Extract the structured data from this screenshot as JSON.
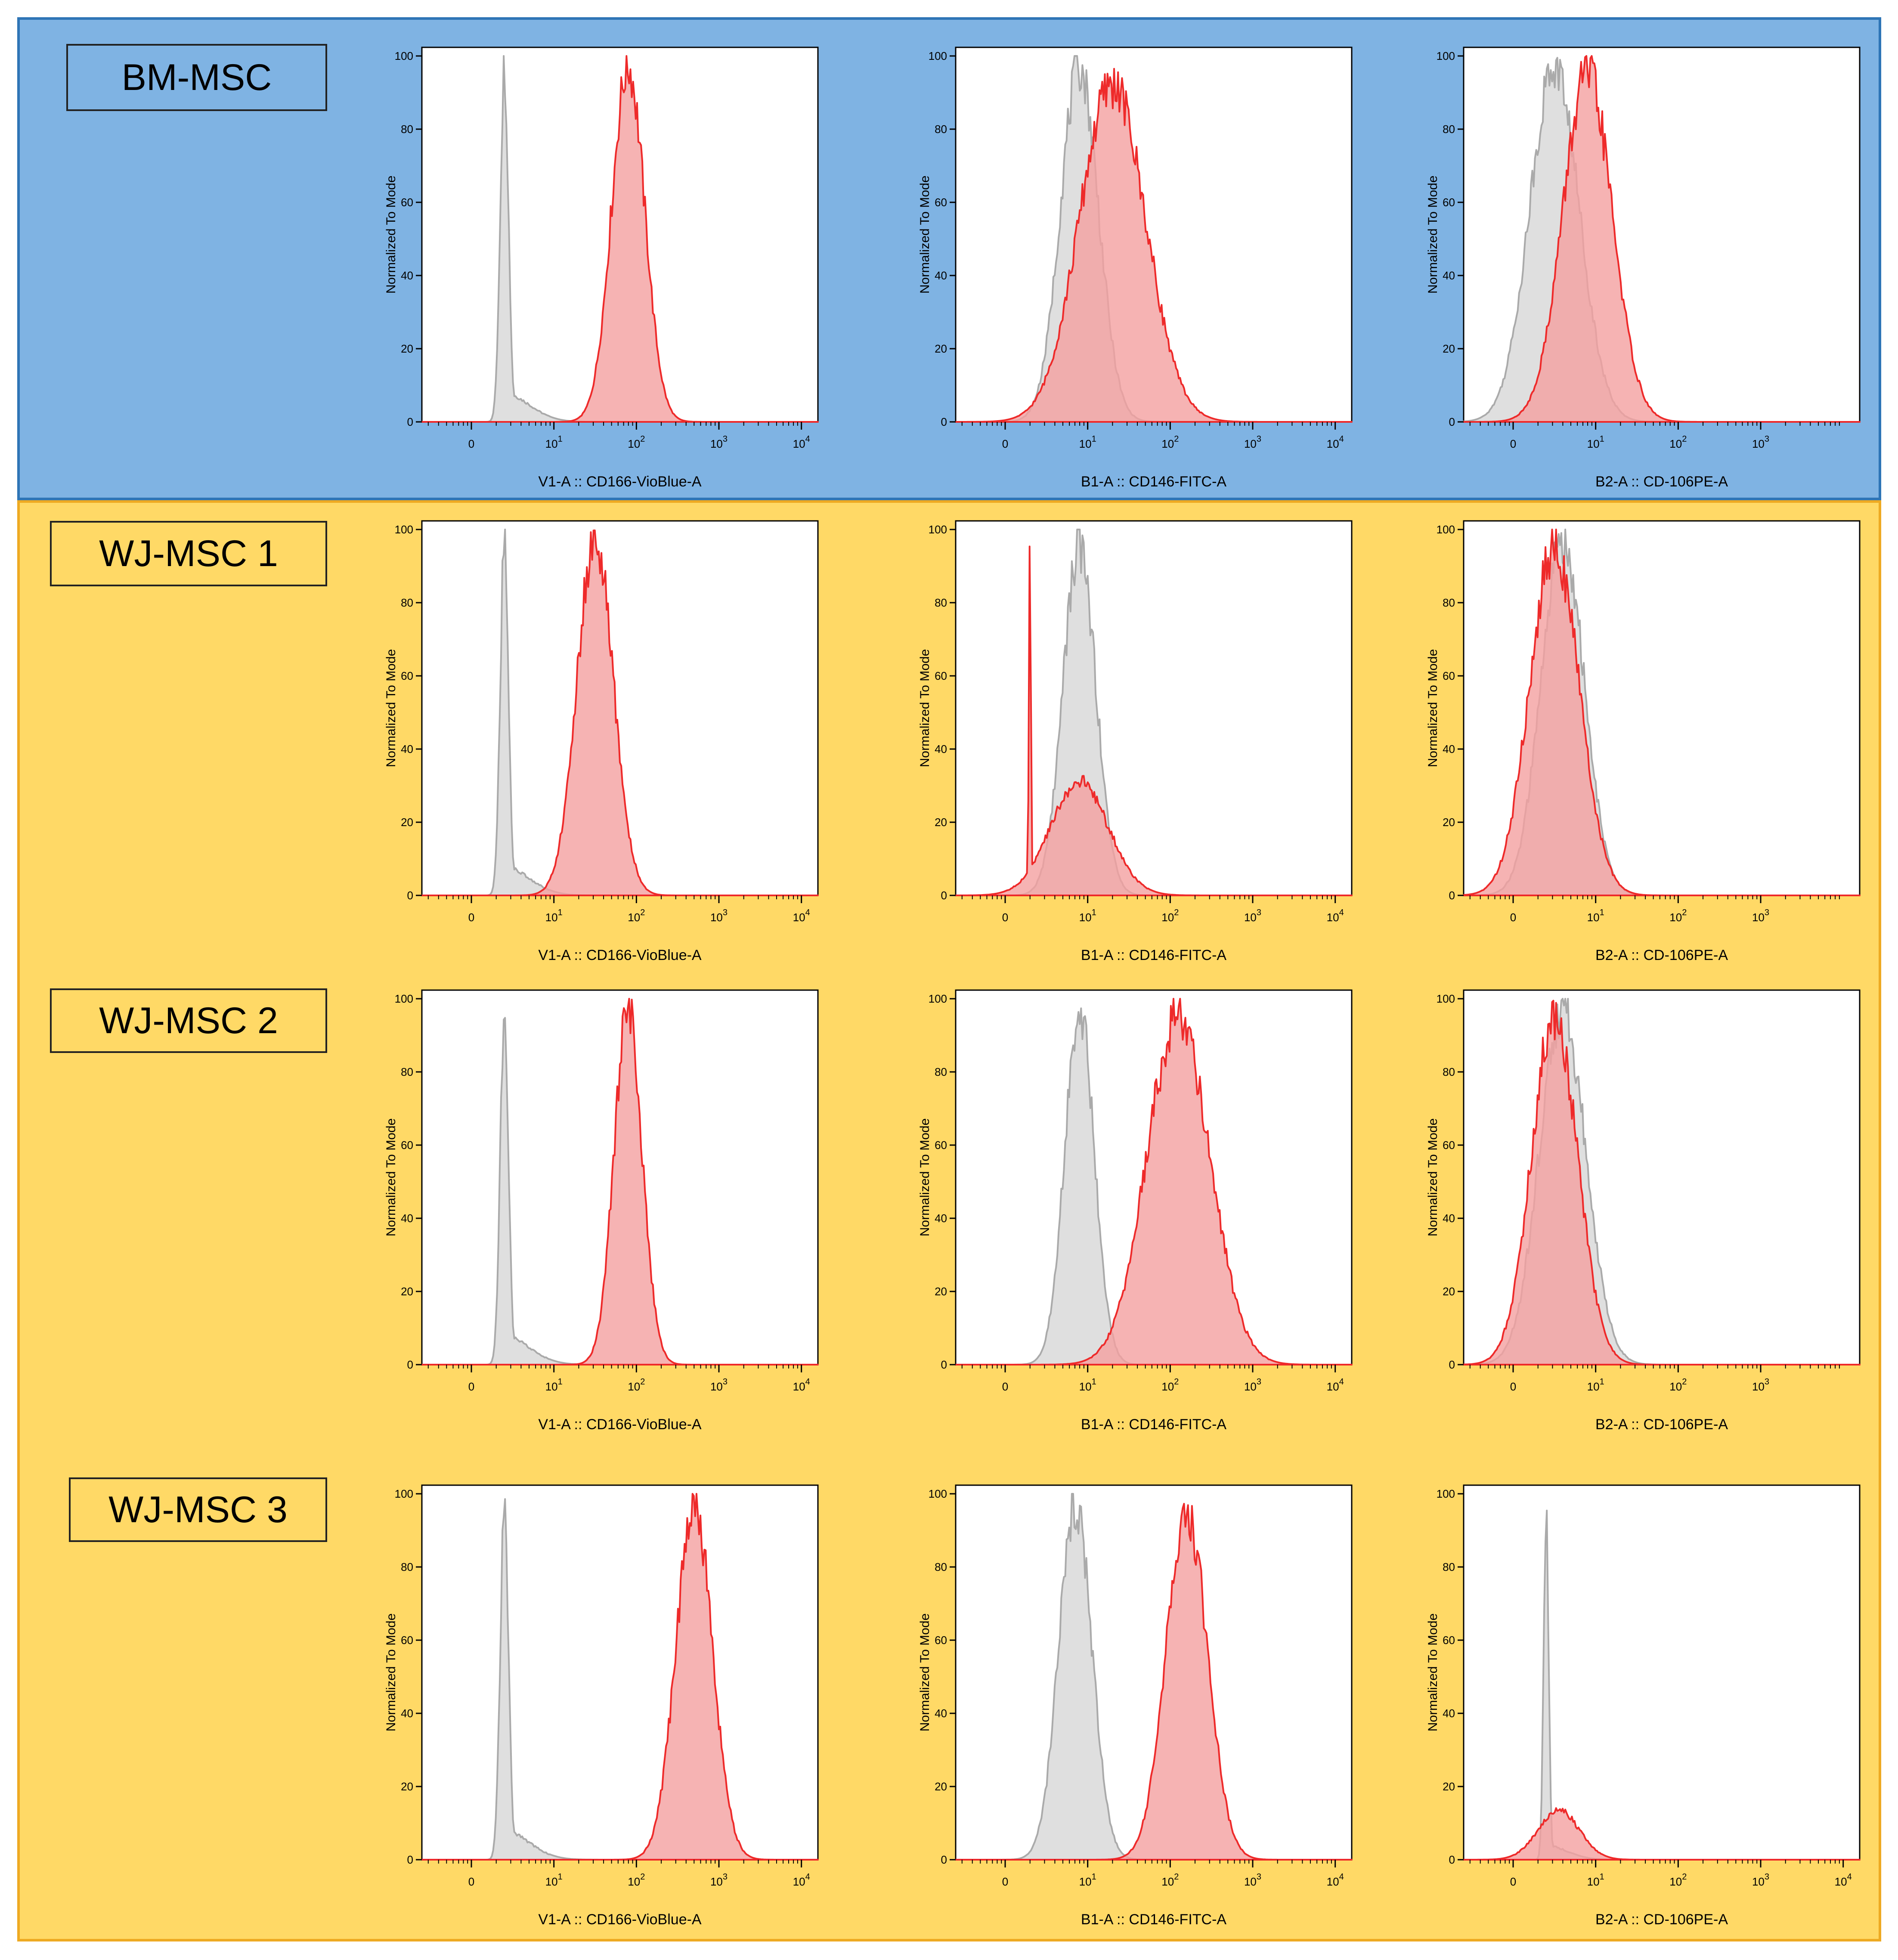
{
  "colors": {
    "bm_background": "#7fb3e3",
    "bm_border": "#2e75b6",
    "wj_background": "#ffd966",
    "wj_border": "#eeaa22",
    "sample_line": "#ee2a2a",
    "sample_fill": "#f4a0a0",
    "control_line": "#aaaaaa",
    "control_fill": "#d9d9d9"
  },
  "sections": [
    {
      "name": "BM-MSC",
      "rows": [
        "BM-MSC"
      ]
    },
    {
      "name": "WJ-MSC",
      "rows": [
        "WJ-MSC 1",
        "WJ-MSC 2",
        "WJ-MSC 3"
      ]
    }
  ],
  "row_labels": [
    "BM-MSC",
    "WJ-MSC 1",
    "WJ-MSC 2",
    "WJ-MSC 3"
  ],
  "chart_data": [
    {
      "type": "area",
      "row": "BM-MSC",
      "title": "",
      "xlabel": "V1-A :: CD166-VioBlue-A",
      "ylabel": "Normalized To Mode",
      "xticks": [
        "0",
        "10^1",
        "10^2",
        "10^3",
        "10^4"
      ],
      "yticks": [
        "0",
        "20",
        "40",
        "60",
        "80",
        "100"
      ],
      "ylim": [
        0,
        100
      ],
      "x_scale": "biexponential (log10)",
      "series": [
        {
          "name": "control",
          "peak_log10": 0.4,
          "width": 0.05,
          "height": 100,
          "tail_height": 8,
          "tail_width": 0.3,
          "spike": true
        },
        {
          "name": "sample",
          "peak_log10": 1.9,
          "width": 0.2,
          "height": 100
        }
      ]
    },
    {
      "type": "area",
      "row": "BM-MSC",
      "title": "",
      "xlabel": "B1-A :: CD146-FITC-A",
      "ylabel": "Normalized To Mode",
      "xticks": [
        "0",
        "10^1",
        "10^2",
        "10^3",
        "10^4"
      ],
      "yticks": [
        "0",
        "20",
        "40",
        "60",
        "80",
        "100"
      ],
      "ylim": [
        0,
        100
      ],
      "x_scale": "biexponential (log10)",
      "series": [
        {
          "name": "control",
          "peak_log10": 0.9,
          "width": 0.23,
          "height": 100
        },
        {
          "name": "sample",
          "peak_log10": 1.3,
          "width": 0.4,
          "height": 95
        }
      ]
    },
    {
      "type": "area",
      "row": "BM-MSC",
      "title": "",
      "xlabel": "B2-A :: CD-106PE-A",
      "ylabel": "Normalized To Mode",
      "xticks": [
        "0",
        "10^1",
        "10^2",
        "10^3"
      ],
      "yticks": [
        "0",
        "20",
        "40",
        "60",
        "80",
        "100"
      ],
      "ylim": [
        0,
        100
      ],
      "x_scale": "biexponential (log10)",
      "series": [
        {
          "name": "control",
          "peak_log10": 0.5,
          "width": 0.3,
          "height": 100
        },
        {
          "name": "sample",
          "peak_log10": 0.9,
          "width": 0.3,
          "height": 98
        }
      ]
    },
    {
      "type": "area",
      "row": "WJ-MSC 1",
      "title": "",
      "xlabel": "V1-A :: CD166-VioBlue-A",
      "ylabel": "Normalized To Mode",
      "xticks": [
        "0",
        "10^1",
        "10^2",
        "10^3",
        "10^4"
      ],
      "yticks": [
        "0",
        "20",
        "40",
        "60",
        "80",
        "100"
      ],
      "ylim": [
        0,
        100
      ],
      "x_scale": "biexponential (log10)",
      "series": [
        {
          "name": "control",
          "peak_log10": 0.4,
          "width": 0.05,
          "height": 100,
          "tail_height": 8,
          "tail_width": 0.3,
          "spike": true
        },
        {
          "name": "sample",
          "peak_log10": 1.5,
          "width": 0.22,
          "height": 100
        }
      ]
    },
    {
      "type": "area",
      "row": "WJ-MSC 1",
      "title": "",
      "xlabel": "B1-A :: CD146-FITC-A",
      "ylabel": "Normalized To Mode",
      "xticks": [
        "0",
        "10^1",
        "10^2",
        "10^3",
        "10^4"
      ],
      "yticks": [
        "0",
        "20",
        "40",
        "60",
        "80",
        "100"
      ],
      "ylim": [
        0,
        100
      ],
      "x_scale": "biexponential (log10)",
      "series": [
        {
          "name": "control",
          "peak_log10": 0.9,
          "width": 0.2,
          "height": 98
        },
        {
          "name": "sample",
          "peak_log10": 0.9,
          "width": 0.35,
          "height": 32,
          "spike_log10": 0.3,
          "spike_height": 100
        }
      ]
    },
    {
      "type": "area",
      "row": "WJ-MSC 1",
      "title": "",
      "xlabel": "B2-A :: CD-106PE-A",
      "ylabel": "Normalized To Mode",
      "xticks": [
        "0",
        "10^1",
        "10^2",
        "10^3"
      ],
      "yticks": [
        "0",
        "20",
        "40",
        "60",
        "80",
        "100"
      ],
      "ylim": [
        0,
        100
      ],
      "x_scale": "biexponential (log10)",
      "series": [
        {
          "name": "control",
          "peak_log10": 0.6,
          "width": 0.26,
          "height": 100
        },
        {
          "name": "sample",
          "peak_log10": 0.5,
          "width": 0.3,
          "height": 98
        }
      ]
    },
    {
      "type": "area",
      "row": "WJ-MSC 2",
      "title": "",
      "xlabel": "V1-A :: CD166-VioBlue-A",
      "ylabel": "Normalized To Mode",
      "xticks": [
        "0",
        "10^1",
        "10^2",
        "10^3",
        "10^4"
      ],
      "yticks": [
        "0",
        "20",
        "40",
        "60",
        "80",
        "100"
      ],
      "ylim": [
        0,
        100
      ],
      "x_scale": "biexponential (log10)",
      "series": [
        {
          "name": "control",
          "peak_log10": 0.4,
          "width": 0.05,
          "height": 100,
          "tail_height": 8,
          "tail_width": 0.3,
          "spike": true
        },
        {
          "name": "sample",
          "peak_log10": 1.9,
          "width": 0.17,
          "height": 100
        }
      ]
    },
    {
      "type": "area",
      "row": "WJ-MSC 2",
      "title": "",
      "xlabel": "B1-A :: CD146-FITC-A",
      "ylabel": "Normalized To Mode",
      "xticks": [
        "0",
        "10^1",
        "10^2",
        "10^3",
        "10^4"
      ],
      "yticks": [
        "0",
        "20",
        "40",
        "60",
        "80",
        "100"
      ],
      "ylim": [
        0,
        100
      ],
      "x_scale": "biexponential (log10)",
      "series": [
        {
          "name": "control",
          "peak_log10": 0.9,
          "width": 0.18,
          "height": 100
        },
        {
          "name": "sample",
          "peak_log10": 2.1,
          "width": 0.38,
          "height": 98
        }
      ]
    },
    {
      "type": "area",
      "row": "WJ-MSC 2",
      "title": "",
      "xlabel": "B2-A :: CD-106PE-A",
      "ylabel": "Normalized To Mode",
      "xticks": [
        "0",
        "10^1",
        "10^2",
        "10^3"
      ],
      "yticks": [
        "0",
        "20",
        "40",
        "60",
        "80",
        "100"
      ],
      "ylim": [
        0,
        100
      ],
      "x_scale": "biexponential (log10)",
      "series": [
        {
          "name": "control",
          "peak_log10": 0.6,
          "width": 0.28,
          "height": 100
        },
        {
          "name": "sample",
          "peak_log10": 0.5,
          "width": 0.28,
          "height": 98
        }
      ]
    },
    {
      "type": "area",
      "row": "WJ-MSC 3",
      "title": "",
      "xlabel": "V1-A :: CD166-VioBlue-A",
      "ylabel": "Normalized To Mode",
      "xticks": [
        "0",
        "10^1",
        "10^2",
        "10^3",
        "10^4"
      ],
      "yticks": [
        "0",
        "20",
        "40",
        "60",
        "80",
        "100"
      ],
      "ylim": [
        0,
        100
      ],
      "x_scale": "biexponential (log10)",
      "series": [
        {
          "name": "control",
          "peak_log10": 0.4,
          "width": 0.05,
          "height": 100,
          "tail_height": 8,
          "tail_width": 0.3,
          "spike": true
        },
        {
          "name": "sample",
          "peak_log10": 2.7,
          "width": 0.22,
          "height": 100
        }
      ]
    },
    {
      "type": "area",
      "row": "WJ-MSC 3",
      "title": "",
      "xlabel": "B1-A :: CD146-FITC-A",
      "ylabel": "Normalized To Mode",
      "xticks": [
        "0",
        "10^1",
        "10^2",
        "10^3",
        "10^4"
      ],
      "yticks": [
        "0",
        "20",
        "40",
        "60",
        "80",
        "100"
      ],
      "ylim": [
        0,
        100
      ],
      "x_scale": "biexponential (log10)",
      "series": [
        {
          "name": "control",
          "peak_log10": 0.85,
          "width": 0.2,
          "height": 100
        },
        {
          "name": "sample",
          "peak_log10": 2.2,
          "width": 0.25,
          "height": 98
        }
      ]
    },
    {
      "type": "area",
      "row": "WJ-MSC 3",
      "title": "",
      "xlabel": "B2-A :: CD-106PE-A",
      "ylabel": "Normalized To Mode",
      "xticks": [
        "0",
        "10^1",
        "10^2",
        "10^3",
        "10^4"
      ],
      "yticks": [
        "0",
        "20",
        "40",
        "60",
        "80",
        "100"
      ],
      "ylim": [
        0,
        100
      ],
      "x_scale": "biexponential (log10)",
      "series": [
        {
          "name": "control",
          "peak_log10": 0.4,
          "width": 0.03,
          "height": 100,
          "tail_height": 4,
          "tail_width": 0.25,
          "spike": true
        },
        {
          "name": "sample",
          "peak_log10": 0.55,
          "width": 0.25,
          "height": 14
        }
      ]
    }
  ]
}
